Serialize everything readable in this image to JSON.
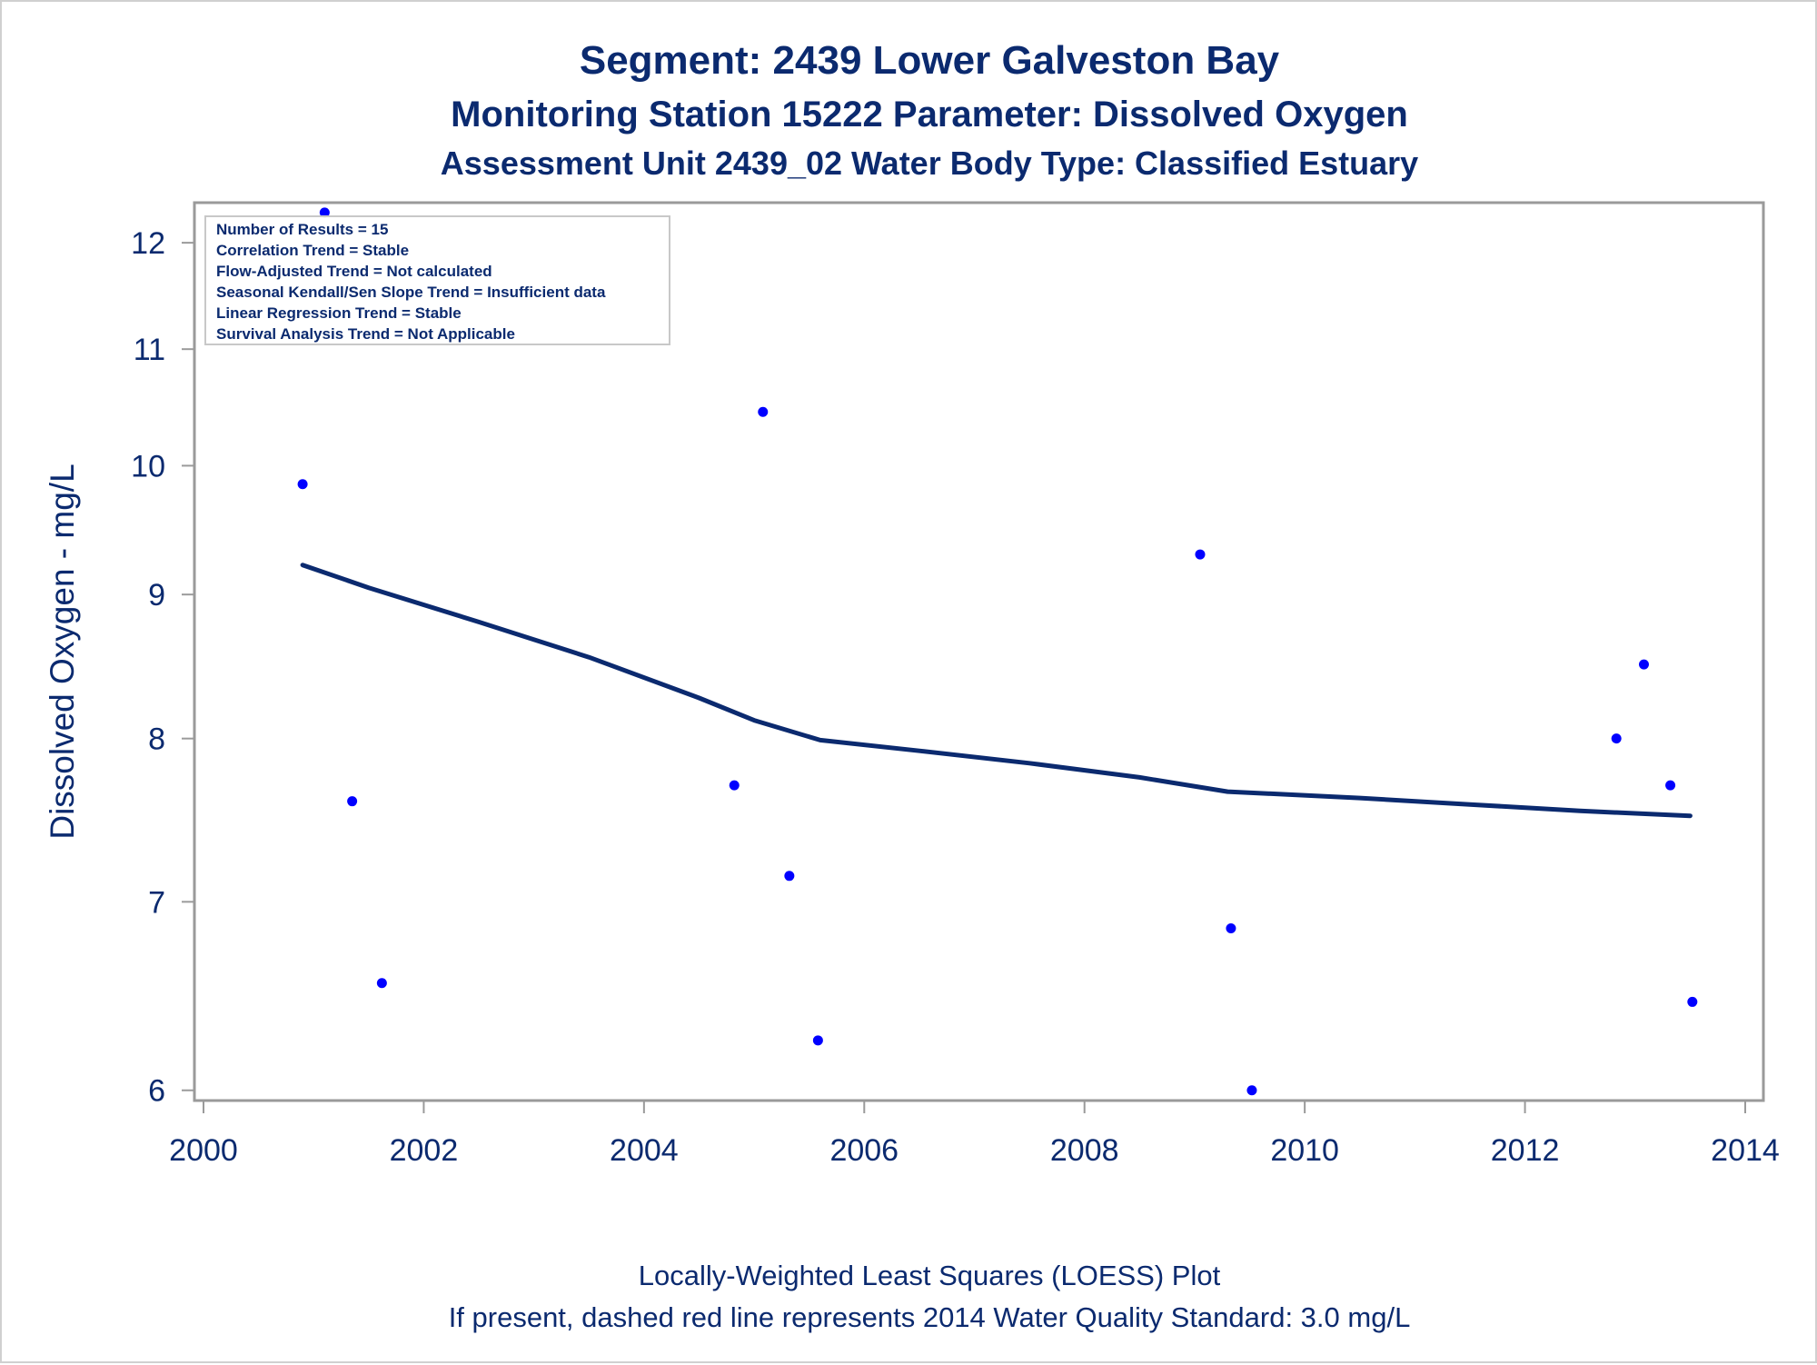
{
  "chart_data": {
    "type": "scatter",
    "title": "Segment: 2439  Lower Galveston Bay",
    "subtitle": "Monitoring Station 15222 Parameter: Dissolved Oxygen",
    "subtitle2": "Assessment Unit 2439_02   Water Body Type: Classified Estuary",
    "xlabel": "",
    "ylabel": "Dissolved Oxygen - mg/L",
    "x_ticks": [
      "2000",
      "2002",
      "2004",
      "2006",
      "2008",
      "2010",
      "2012",
      "2014"
    ],
    "y_ticks": [
      "6",
      "7",
      "8",
      "9",
      "10",
      "11",
      "12"
    ],
    "xlim": [
      2000,
      2014
    ],
    "ylim": [
      5.95,
      12.4
    ],
    "y_scale": "log",
    "grid": false,
    "stats_box": {
      "placement": "top-left",
      "lines": [
        "Number of Results = 15",
        "Correlation Trend = Stable",
        "Flow-Adjusted Trend = Not calculated",
        "Seasonal Kendall/Sen Slope Trend = Insufficient data",
        "Linear Regression Trend = Stable",
        "Survival Analysis Trend = Not Applicable"
      ]
    },
    "points": {
      "x": [
        2000.9,
        2001.1,
        2001.35,
        2001.62,
        2004.82,
        2005.08,
        2005.32,
        2005.58,
        2009.05,
        2009.33,
        2009.52,
        2012.83,
        2013.08,
        2013.32,
        2013.52
      ],
      "y": [
        9.85,
        12.3,
        7.6,
        6.55,
        7.7,
        10.45,
        7.15,
        6.25,
        9.3,
        6.85,
        6.0,
        8.0,
        8.5,
        7.7,
        6.45
      ]
    },
    "loess": {
      "x": [
        2000.9,
        2001.5,
        2002.5,
        2003.5,
        2004.5,
        2005.0,
        2005.6,
        2006.5,
        2007.5,
        2008.5,
        2009.3,
        2010.5,
        2011.5,
        2012.5,
        2013.5
      ],
      "y": [
        9.22,
        9.05,
        8.8,
        8.55,
        8.27,
        8.12,
        7.99,
        7.92,
        7.84,
        7.75,
        7.66,
        7.62,
        7.58,
        7.54,
        7.51
      ]
    },
    "colors": {
      "points": "#0000ff",
      "loess_line": "#0b2a6f",
      "text": "#0b2a6f",
      "plot_border": "#9a9a9a"
    }
  },
  "footnotes": {
    "line1": "Locally-Weighted Least Squares (LOESS) Plot",
    "line2": "If present, dashed red line represents 2014 Water Quality Standard: 3.0 mg/L"
  }
}
